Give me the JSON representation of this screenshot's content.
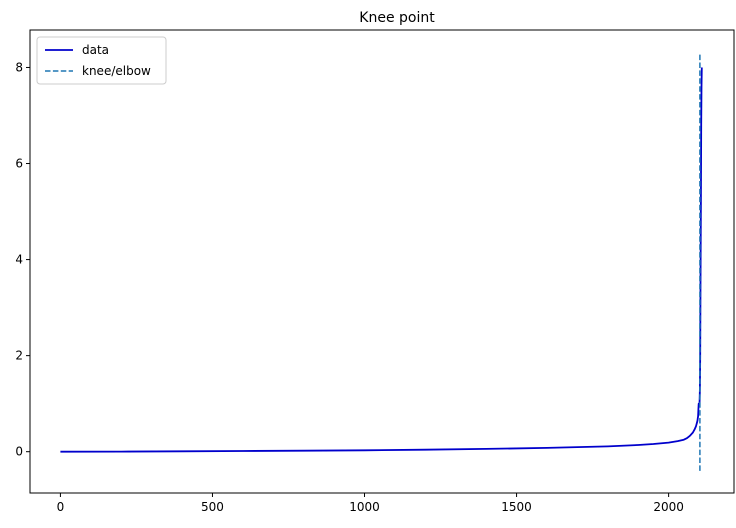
{
  "chart_data": {
    "type": "line",
    "title": "Knee point",
    "xlabel": "",
    "ylabel": "",
    "xlim": [
      -100,
      2215
    ],
    "ylim": [
      -0.86,
      8.78
    ],
    "xticks": [
      0,
      500,
      1000,
      1500,
      2000
    ],
    "yticks": [
      0,
      2,
      4,
      6,
      8
    ],
    "grid": false,
    "legend_position": "top-left",
    "series": [
      {
        "name": "data",
        "color": "#0000cc",
        "style": "solid",
        "x": [
          0,
          200,
          400,
          600,
          800,
          1000,
          1200,
          1400,
          1600,
          1800,
          1900,
          1950,
          2000,
          2030,
          2050,
          2060,
          2070,
          2080,
          2085,
          2090,
          2093,
          2095,
          2096,
          2097,
          2098,
          2099,
          2100,
          2101,
          2102,
          2103,
          2104,
          2105,
          2106,
          2107,
          2108,
          2109
        ],
        "y": [
          0.0,
          0.003,
          0.008,
          0.014,
          0.021,
          0.03,
          0.042,
          0.058,
          0.08,
          0.11,
          0.14,
          0.16,
          0.19,
          0.22,
          0.25,
          0.28,
          0.33,
          0.4,
          0.46,
          0.53,
          0.6,
          0.65,
          0.7,
          0.74,
          0.88,
          1.0,
          1.0,
          0.95,
          1.05,
          1.3,
          2.0,
          3.5,
          5.2,
          6.8,
          7.6,
          8.0
        ]
      },
      {
        "name": "knee/elbow",
        "color": "#1f77b4",
        "style": "dashed",
        "x": [
          2103,
          2103
        ],
        "y": [
          -0.4,
          8.3
        ]
      }
    ]
  }
}
